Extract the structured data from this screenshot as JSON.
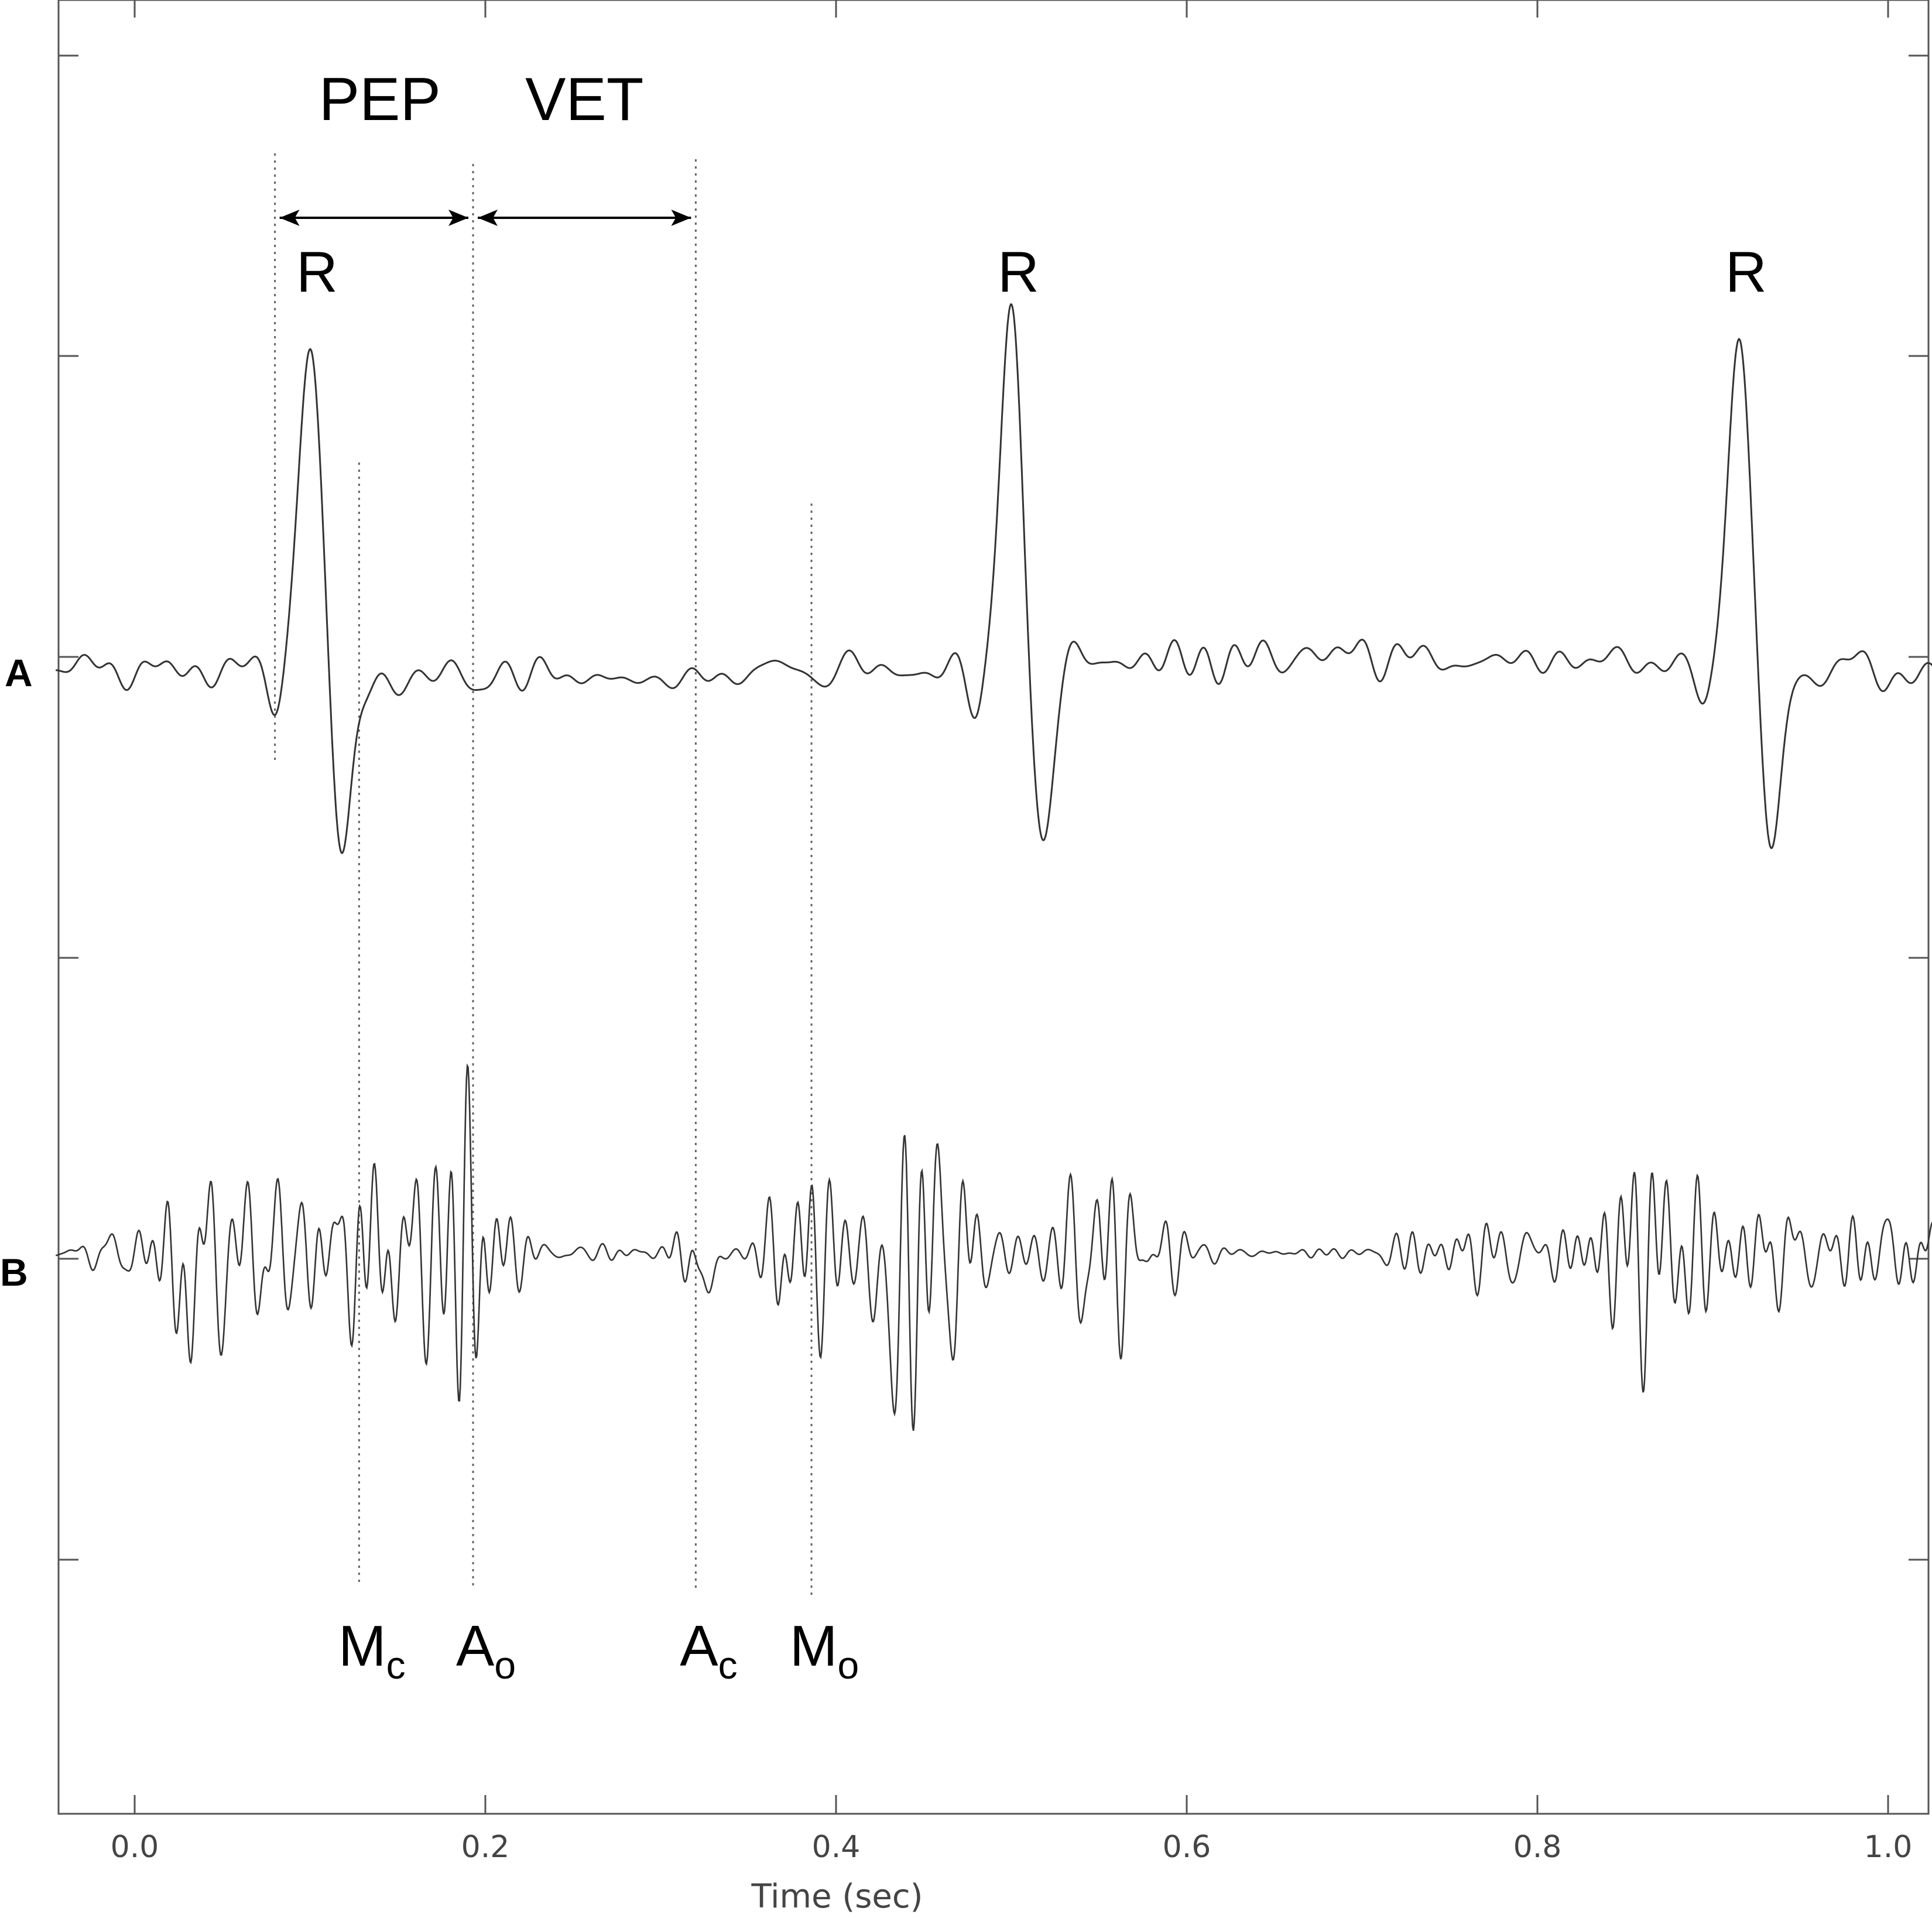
{
  "chart_data": {
    "type": "line",
    "xlabel": "Time (sec)",
    "xlim": [
      -0.045,
      1.03
    ],
    "x_ticks": [
      0.0,
      0.2,
      0.4,
      0.6,
      0.8,
      1.0
    ],
    "x_tick_labels": [
      "0.0",
      "0.2",
      "0.4",
      "0.6",
      "0.8",
      "1.0"
    ],
    "series": [
      {
        "name": "A",
        "kind": "ECG",
        "r_peaks": [
          0.1,
          0.5,
          0.915
        ],
        "peak_labels": [
          "R",
          "R",
          "R"
        ]
      },
      {
        "name": "B",
        "kind": "SCG"
      }
    ],
    "events": [
      {
        "label": "M",
        "sub": "c",
        "x": 0.128
      },
      {
        "label": "A",
        "sub": "o",
        "x": 0.193
      },
      {
        "label": "A",
        "sub": "c",
        "x": 0.32
      },
      {
        "label": "M",
        "sub": "o",
        "x": 0.386
      }
    ],
    "intervals": [
      {
        "label": "PEP",
        "from": 0.08,
        "to": 0.193
      },
      {
        "label": "VET",
        "from": 0.193,
        "to": 0.32
      }
    ],
    "grid": false
  },
  "colors": {
    "trace": "#333333",
    "axis": "#555555",
    "annotation": "#000000"
  }
}
